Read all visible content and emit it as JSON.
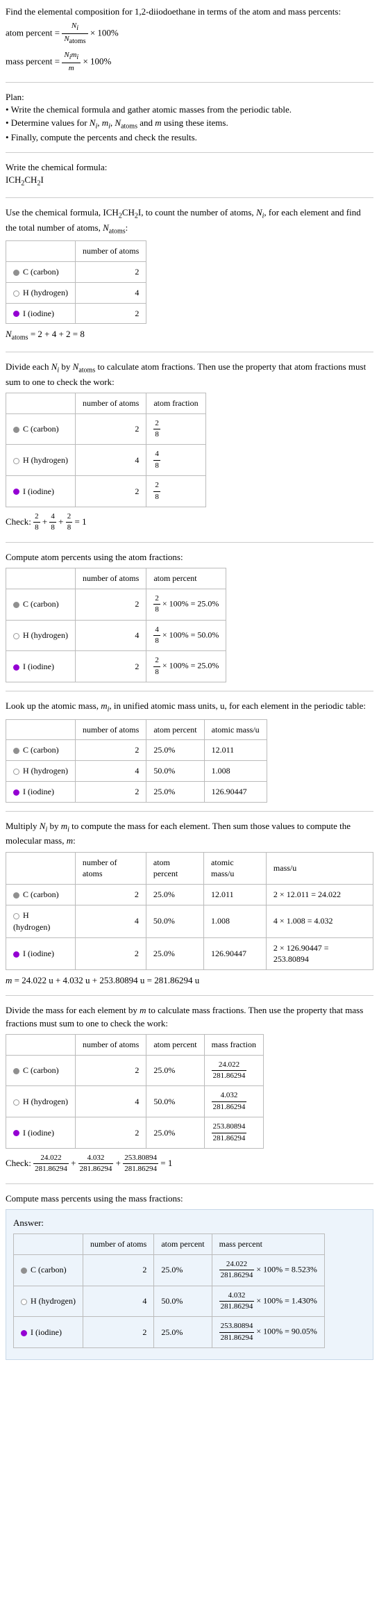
{
  "intro": {
    "line1": "Find the elemental composition for 1,2-diiodoethane in terms of the atom and mass percents:",
    "atom_percent_lhs": "atom percent =",
    "atom_percent_num": "N_i",
    "atom_percent_den": "N_atoms",
    "times100": "× 100%",
    "mass_percent_lhs": "mass percent =",
    "mass_percent_num": "N_i m_i",
    "mass_percent_den": "m"
  },
  "plan": {
    "heading": "Plan:",
    "b1": "• Write the chemical formula and gather atomic masses from the periodic table.",
    "b2": "• Determine values for N_i, m_i, N_atoms and m using these items.",
    "b2_pre": "• Determine values for ",
    "b2_post": " using these items.",
    "b3": "• Finally, compute the percents and check the results."
  },
  "chem": {
    "heading": "Write the chemical formula:",
    "formula_plain": "ICH₂CH₂I"
  },
  "count": {
    "text_pre": "Use the chemical formula, ",
    "text_mid": ", to count the number of atoms, ",
    "text_mid2": ", for each element and find the total number of atoms, ",
    "text_end": ":",
    "col_atoms": "number of atoms",
    "rows": [
      {
        "el": "C (carbon)",
        "dot": "dot-c",
        "n": "2"
      },
      {
        "el": "H (hydrogen)",
        "dot": "dot-h",
        "n": "4"
      },
      {
        "el": "I (iodine)",
        "dot": "dot-i",
        "n": "2"
      }
    ],
    "sum_lhs": "N_atoms",
    "sum_eq": " = 2 + 4 + 2 = 8"
  },
  "atomfrac": {
    "text_pre": "Divide each ",
    "text_mid": " by ",
    "text_post": " to calculate atom fractions. Then use the property that atom fractions must sum to one to check the work:",
    "col_atoms": "number of atoms",
    "col_frac": "atom fraction",
    "rows": [
      {
        "el": "C (carbon)",
        "dot": "dot-c",
        "n": "2",
        "num": "2",
        "den": "8"
      },
      {
        "el": "H (hydrogen)",
        "dot": "dot-h",
        "n": "4",
        "num": "4",
        "den": "8"
      },
      {
        "el": "I (iodine)",
        "dot": "dot-i",
        "n": "2",
        "num": "2",
        "den": "8"
      }
    ],
    "check_label": "Check: ",
    "check_eq": " = 1",
    "f1n": "2",
    "f1d": "8",
    "f2n": "4",
    "f2d": "8",
    "f3n": "2",
    "f3d": "8"
  },
  "atompct": {
    "heading": "Compute atom percents using the atom fractions:",
    "col_atoms": "number of atoms",
    "col_pct": "atom percent",
    "rows": [
      {
        "el": "C (carbon)",
        "dot": "dot-c",
        "n": "2",
        "num": "2",
        "den": "8",
        "pct": " × 100% = 25.0%"
      },
      {
        "el": "H (hydrogen)",
        "dot": "dot-h",
        "n": "4",
        "num": "4",
        "den": "8",
        "pct": " × 100% = 50.0%"
      },
      {
        "el": "I (iodine)",
        "dot": "dot-i",
        "n": "2",
        "num": "2",
        "den": "8",
        "pct": " × 100% = 25.0%"
      }
    ]
  },
  "atomicmass": {
    "text_pre": "Look up the atomic mass, ",
    "text_post": ", in unified atomic mass units, u, for each element in the periodic table:",
    "col_atoms": "number of atoms",
    "col_pct": "atom percent",
    "col_mass": "atomic mass/u",
    "rows": [
      {
        "el": "C (carbon)",
        "dot": "dot-c",
        "n": "2",
        "pct": "25.0%",
        "mass": "12.011"
      },
      {
        "el": "H (hydrogen)",
        "dot": "dot-h",
        "n": "4",
        "pct": "50.0%",
        "mass": "1.008"
      },
      {
        "el": "I (iodine)",
        "dot": "dot-i",
        "n": "2",
        "pct": "25.0%",
        "mass": "126.90447"
      }
    ]
  },
  "molarmass": {
    "text_pre": "Multiply ",
    "text_mid": " by ",
    "text_mid2": " to compute the mass for each element. Then sum those values to compute the molecular mass, ",
    "text_end": ":",
    "col_atoms": "number of atoms",
    "col_pct": "atom percent",
    "col_amass": "atomic mass/u",
    "col_mass": "mass/u",
    "rows": [
      {
        "el": "C (carbon)",
        "dot": "dot-c",
        "n": "2",
        "pct": "25.0%",
        "amass": "12.011",
        "mass": "2 × 12.011 = 24.022"
      },
      {
        "el": "H (hydrogen)",
        "dot": "dot-h",
        "n": "4",
        "pct": "50.0%",
        "amass": "1.008",
        "mass": "4 × 1.008 = 4.032"
      },
      {
        "el": "I (iodine)",
        "dot": "dot-i",
        "n": "2",
        "pct": "25.0%",
        "amass": "126.90447",
        "mass": "2 × 126.90447 = 253.80894"
      }
    ],
    "sum": "m = 24.022 u + 4.032 u + 253.80894 u = 281.86294 u"
  },
  "massfrac": {
    "text": "Divide the mass for each element by m to calculate mass fractions. Then use the property that mass fractions must sum to one to check the work:",
    "text_pre": "Divide the mass for each element by ",
    "text_post": " to calculate mass fractions. Then use the property that mass fractions must sum to one to check the work:",
    "col_atoms": "number of atoms",
    "col_pct": "atom percent",
    "col_frac": "mass fraction",
    "den": "281.86294",
    "rows": [
      {
        "el": "C (carbon)",
        "dot": "dot-c",
        "n": "2",
        "pct": "25.0%",
        "num": "24.022"
      },
      {
        "el": "H (hydrogen)",
        "dot": "dot-h",
        "n": "4",
        "pct": "50.0%",
        "num": "4.032"
      },
      {
        "el": "I (iodine)",
        "dot": "dot-i",
        "n": "2",
        "pct": "25.0%",
        "num": "253.80894"
      }
    ],
    "check_label": "Check: ",
    "check_eq": " = 1"
  },
  "masspct": {
    "heading": "Compute mass percents using the mass fractions:",
    "answer_label": "Answer:",
    "col_atoms": "number of atoms",
    "col_pct": "atom percent",
    "col_mpct": "mass percent",
    "den": "281.86294",
    "rows": [
      {
        "el": "C (carbon)",
        "dot": "dot-c",
        "n": "2",
        "pct": "25.0%",
        "num": "24.022",
        "res": " × 100% = 8.523%"
      },
      {
        "el": "H (hydrogen)",
        "dot": "dot-h",
        "n": "4",
        "pct": "50.0%",
        "num": "4.032",
        "res": " × 100% = 1.430%"
      },
      {
        "el": "I (iodine)",
        "dot": "dot-i",
        "n": "2",
        "pct": "25.0%",
        "num": "253.80894",
        "res": " × 100% = 90.05%"
      }
    ]
  }
}
